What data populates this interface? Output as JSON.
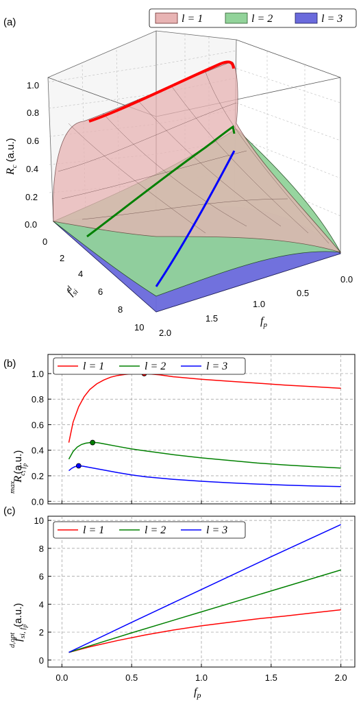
{
  "colors": {
    "red": "#ff0000",
    "green": "#008000",
    "blue": "#0000ff",
    "surf_red": "#e8b4b4",
    "surf_green": "#92d39a",
    "surf_blue": "#6a6adc"
  },
  "panel_a": {
    "label": "(a)",
    "legend": [
      "l = 1",
      "l = 2",
      "l = 3"
    ],
    "zlabel": "R",
    "zlabel_sub": "c",
    "zlabel_unit": "(a.u.)",
    "ylabel": "f",
    "ylabel_sub": "si",
    "ylabel_sup": "d",
    "xlabel": "f",
    "xlabel_sub": "p",
    "zticks": [
      "0.0",
      "0.2",
      "0.4",
      "0.6",
      "0.8",
      "1.0"
    ],
    "yticks": [
      "0",
      "2",
      "4",
      "6",
      "8",
      "10"
    ],
    "xticks": [
      "0.0",
      "0.5",
      "1.0",
      "1.5",
      "2.0"
    ]
  },
  "chart_data": [
    {
      "panel": "b",
      "type": "line",
      "ylabel_main": "R",
      "ylabel_sub": "c, f",
      "ylabel_subsub": "p",
      "ylabel_sup": "max",
      "ylabel_unit": "(a.u.)",
      "xlim": [
        -0.1,
        2.1
      ],
      "ylim": [
        -0.02,
        1.15
      ],
      "yticks": [
        "0.0",
        "0.2",
        "0.4",
        "0.6",
        "0.8",
        "1.0"
      ],
      "series": [
        {
          "name": "l = 1",
          "color": "#ff0000",
          "x": [
            0.05,
            0.08,
            0.12,
            0.16,
            0.2,
            0.25,
            0.3,
            0.35,
            0.4,
            0.45,
            0.5,
            0.55,
            0.59,
            0.7,
            0.8,
            1.0,
            1.2,
            1.4,
            1.6,
            1.8,
            2.0
          ],
          "y": [
            0.46,
            0.62,
            0.74,
            0.82,
            0.875,
            0.92,
            0.95,
            0.972,
            0.985,
            0.993,
            0.998,
            1.0,
            1.0,
            0.99,
            0.975,
            0.955,
            0.94,
            0.925,
            0.91,
            0.898,
            0.885
          ],
          "peak": [
            0.59,
            1.0
          ]
        },
        {
          "name": "l = 2",
          "color": "#008000",
          "x": [
            0.05,
            0.08,
            0.11,
            0.14,
            0.17,
            0.2,
            0.22,
            0.26,
            0.3,
            0.4,
            0.5,
            0.6,
            0.7,
            0.8,
            1.0,
            1.2,
            1.4,
            1.6,
            1.8,
            2.0
          ],
          "y": [
            0.33,
            0.39,
            0.425,
            0.445,
            0.455,
            0.46,
            0.462,
            0.458,
            0.45,
            0.43,
            0.41,
            0.395,
            0.38,
            0.365,
            0.34,
            0.32,
            0.3,
            0.285,
            0.272,
            0.26
          ],
          "peak": [
            0.22,
            0.46
          ]
        },
        {
          "name": "l = 3",
          "color": "#0000ff",
          "x": [
            0.05,
            0.07,
            0.09,
            0.11,
            0.12,
            0.15,
            0.2,
            0.3,
            0.4,
            0.5,
            0.6,
            0.8,
            1.0,
            1.2,
            1.4,
            1.6,
            1.8,
            2.0
          ],
          "y": [
            0.24,
            0.258,
            0.27,
            0.277,
            0.278,
            0.275,
            0.265,
            0.245,
            0.225,
            0.207,
            0.192,
            0.172,
            0.157,
            0.145,
            0.135,
            0.127,
            0.12,
            0.115
          ],
          "peak": [
            0.12,
            0.278
          ]
        }
      ]
    },
    {
      "panel": "c",
      "type": "line",
      "ylabel_main": "f",
      "ylabel_sub": "si, f",
      "ylabel_subsub": "p",
      "ylabel_sup": "d,opt",
      "ylabel_unit": "(a.u.)",
      "xlabel_main": "f",
      "xlabel_sub": "p",
      "xlim": [
        -0.1,
        2.1
      ],
      "ylim": [
        -0.5,
        10.3
      ],
      "xticks": [
        "0.0",
        "0.5",
        "1.0",
        "1.5",
        "2.0"
      ],
      "yticks": [
        "0",
        "2",
        "4",
        "6",
        "8",
        "10"
      ],
      "series": [
        {
          "name": "l = 1",
          "color": "#ff0000",
          "x": [
            0.05,
            0.2,
            0.4,
            0.6,
            0.8,
            1.0,
            1.2,
            1.4,
            1.6,
            1.8,
            2.0
          ],
          "y": [
            0.55,
            0.95,
            1.4,
            1.8,
            2.15,
            2.45,
            2.7,
            2.95,
            3.15,
            3.38,
            3.6
          ]
        },
        {
          "name": "l = 2",
          "color": "#008000",
          "x": [
            0.05,
            0.5,
            1.0,
            1.5,
            2.0
          ],
          "y": [
            0.55,
            1.95,
            3.45,
            4.95,
            6.45
          ]
        },
        {
          "name": "l = 3",
          "color": "#0000ff",
          "x": [
            0.05,
            0.5,
            1.0,
            1.5,
            2.0
          ],
          "y": [
            0.55,
            2.7,
            5.05,
            7.4,
            9.7
          ]
        }
      ]
    }
  ]
}
